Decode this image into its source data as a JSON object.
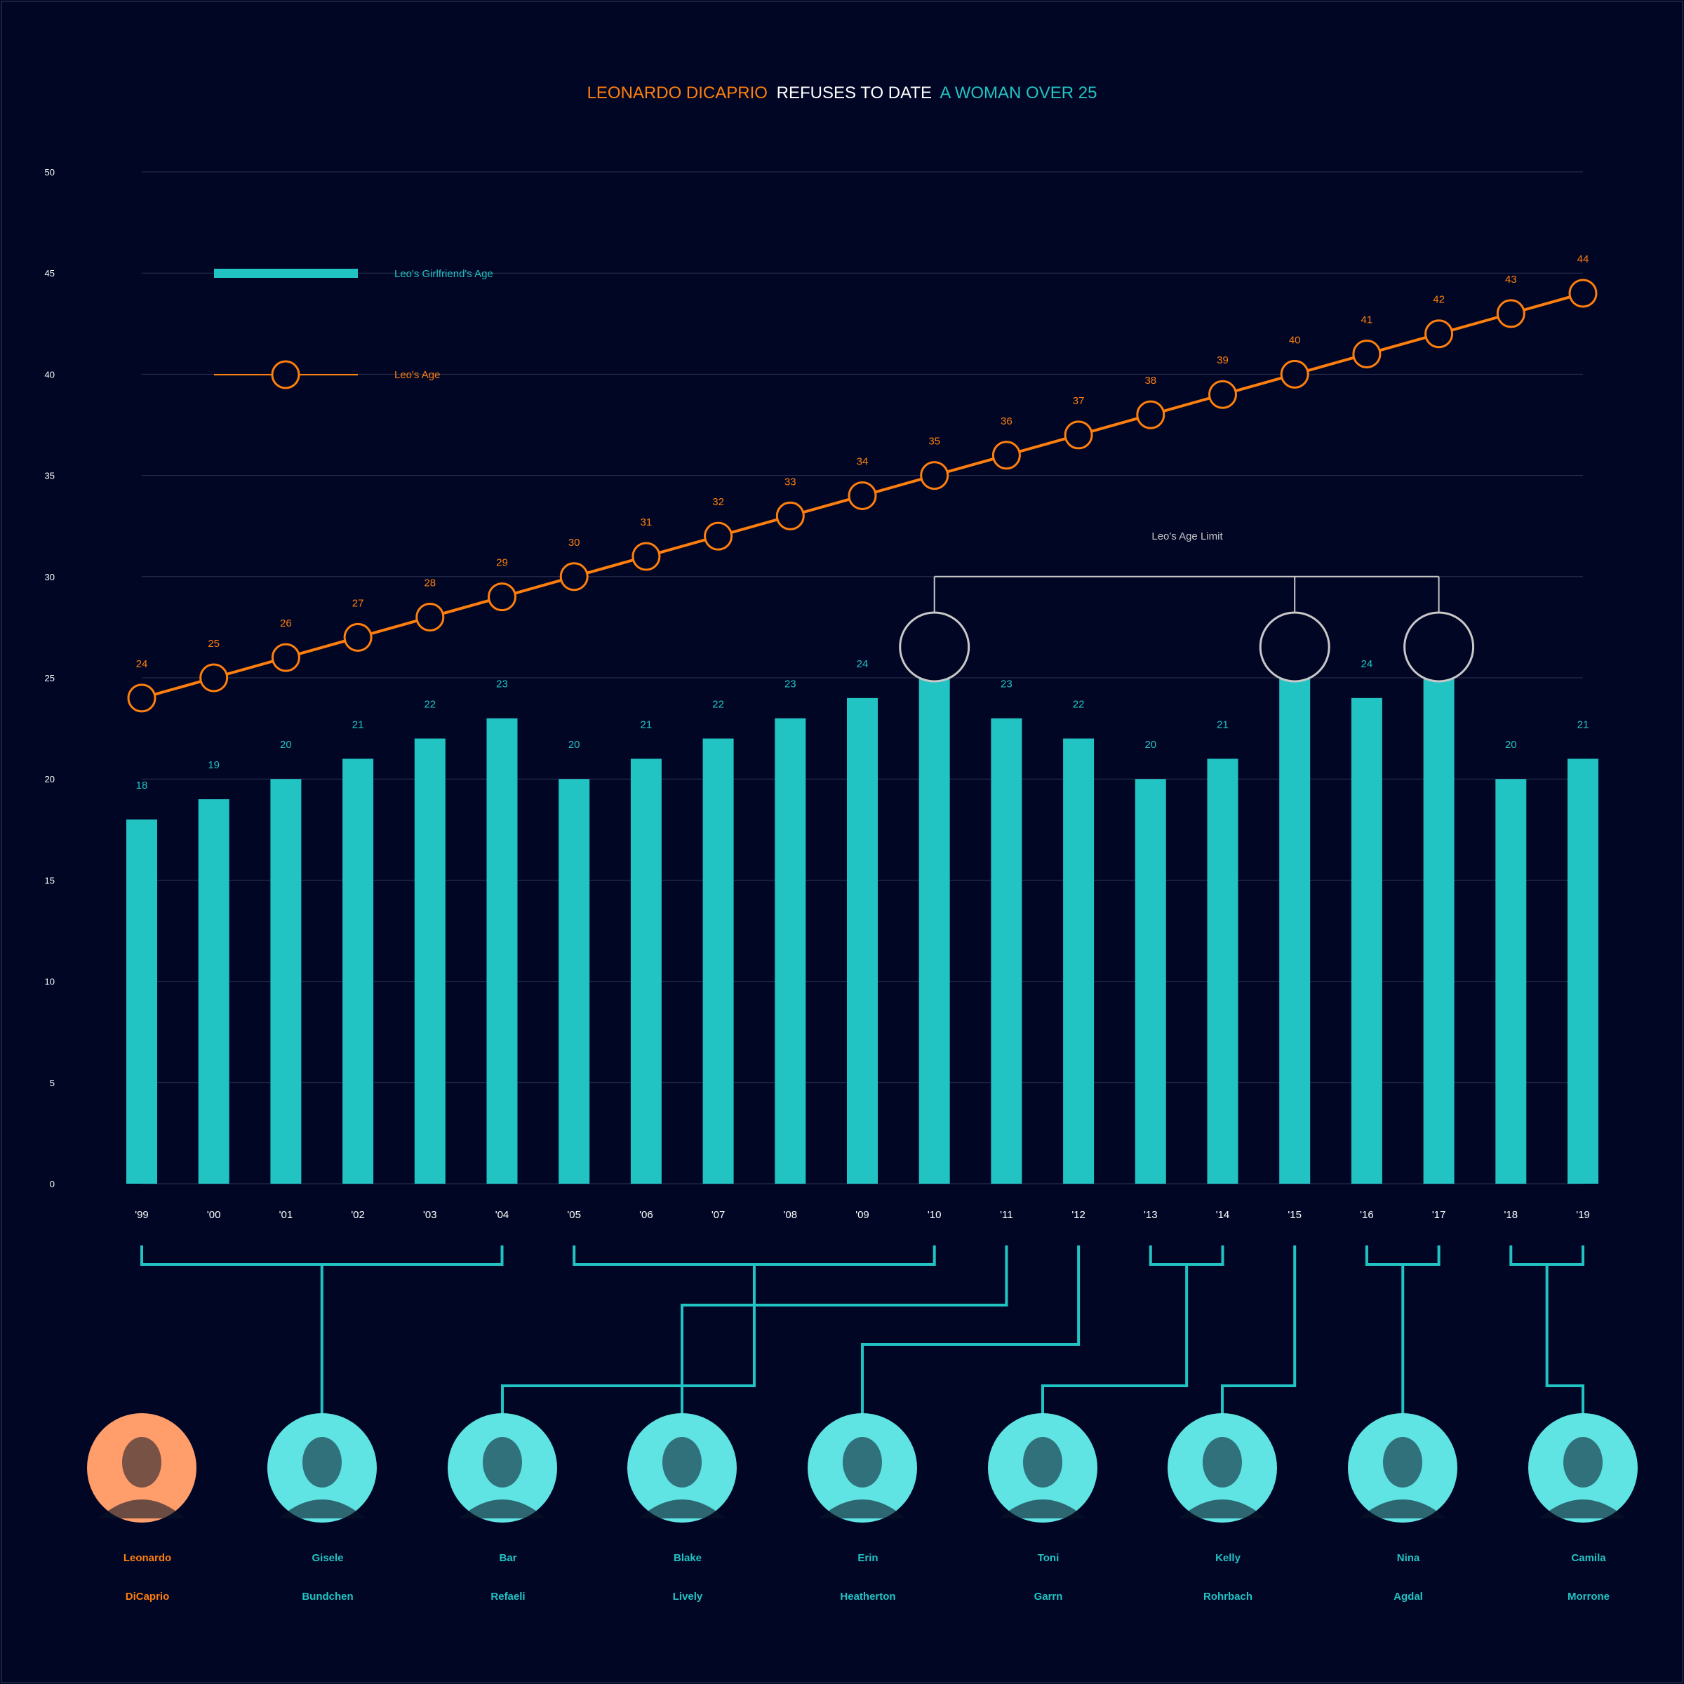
{
  "colors": {
    "background": "#010624",
    "accent_orange": "#ff7f0e",
    "accent_teal": "#22c3c3",
    "white": "#ffffff",
    "annotation_gray": "#c8c8c8",
    "grid": "#2a3350",
    "photo_teal": "#5fe3e3",
    "photo_orange": "#ff9d6b"
  },
  "title": {
    "part1": "LEONARDO DICAPRIO",
    "part2": "REFUSES TO DATE",
    "part3": "A WOMAN OVER 25"
  },
  "legend": {
    "girlfriend_label": "Leo's Girlfriend's Age",
    "leo_label": "Leo's Age",
    "placement": "top-left"
  },
  "annotation": {
    "label": "Leo's Age Limit",
    "value": 30,
    "years": [
      "'10",
      "'15",
      "'17"
    ]
  },
  "chart_data": {
    "type": "bar",
    "title": "LEONARDO DICAPRIO REFUSES TO DATE A WOMAN OVER 25",
    "categories": [
      "'99",
      "'00",
      "'01",
      "'02",
      "'03",
      "'04",
      "'05",
      "'06",
      "'07",
      "'08",
      "'09",
      "'10",
      "'11",
      "'12",
      "'13",
      "'14",
      "'15",
      "'16",
      "'17",
      "'18",
      "'19"
    ],
    "series": [
      {
        "name": "Leo's Girlfriend's Age",
        "type": "bar",
        "values": [
          18,
          19,
          20,
          21,
          22,
          23,
          20,
          21,
          22,
          23,
          24,
          25,
          23,
          22,
          20,
          21,
          25,
          24,
          25,
          20,
          21
        ]
      },
      {
        "name": "Leo's Age",
        "type": "line",
        "values": [
          24,
          25,
          26,
          27,
          28,
          29,
          30,
          31,
          32,
          33,
          34,
          35,
          36,
          37,
          38,
          39,
          40,
          41,
          42,
          43,
          44
        ]
      }
    ],
    "yticks": [
      0,
      5,
      10,
      15,
      20,
      25,
      30,
      35,
      40,
      45,
      50
    ],
    "ylim": [
      0,
      50
    ],
    "grid": true,
    "xlabel": "",
    "ylabel": ""
  },
  "people": [
    {
      "first": "Leonardo",
      "last": "DiCaprio",
      "is_leo": true,
      "photo": "man-portrait-icon"
    },
    {
      "first": "Gisele",
      "last": "Bundchen",
      "from": "'99",
      "to": "'04",
      "photo": "woman-portrait-icon"
    },
    {
      "first": "Bar",
      "last": "Refaeli",
      "from": "'05",
      "to": "'10",
      "photo": "woman-portrait-icon"
    },
    {
      "first": "Blake",
      "last": "Lively",
      "from": "'11",
      "to": "'11",
      "photo": "woman-portrait-icon"
    },
    {
      "first": "Erin",
      "last": "Heatherton",
      "from": "'12",
      "to": "'12",
      "photo": "woman-portrait-icon"
    },
    {
      "first": "Toni",
      "last": "Garrn",
      "from": "'13",
      "to": "'14",
      "photo": "woman-portrait-icon"
    },
    {
      "first": "Kelly",
      "last": "Rohrbach",
      "from": "'15",
      "to": "'15",
      "photo": "woman-portrait-icon"
    },
    {
      "first": "Nina",
      "last": "Agdal",
      "from": "'16",
      "to": "'17",
      "photo": "woman-portrait-icon"
    },
    {
      "first": "Camila",
      "last": "Morrone",
      "from": "'18",
      "to": "'19",
      "photo": "woman-portrait-icon"
    }
  ]
}
